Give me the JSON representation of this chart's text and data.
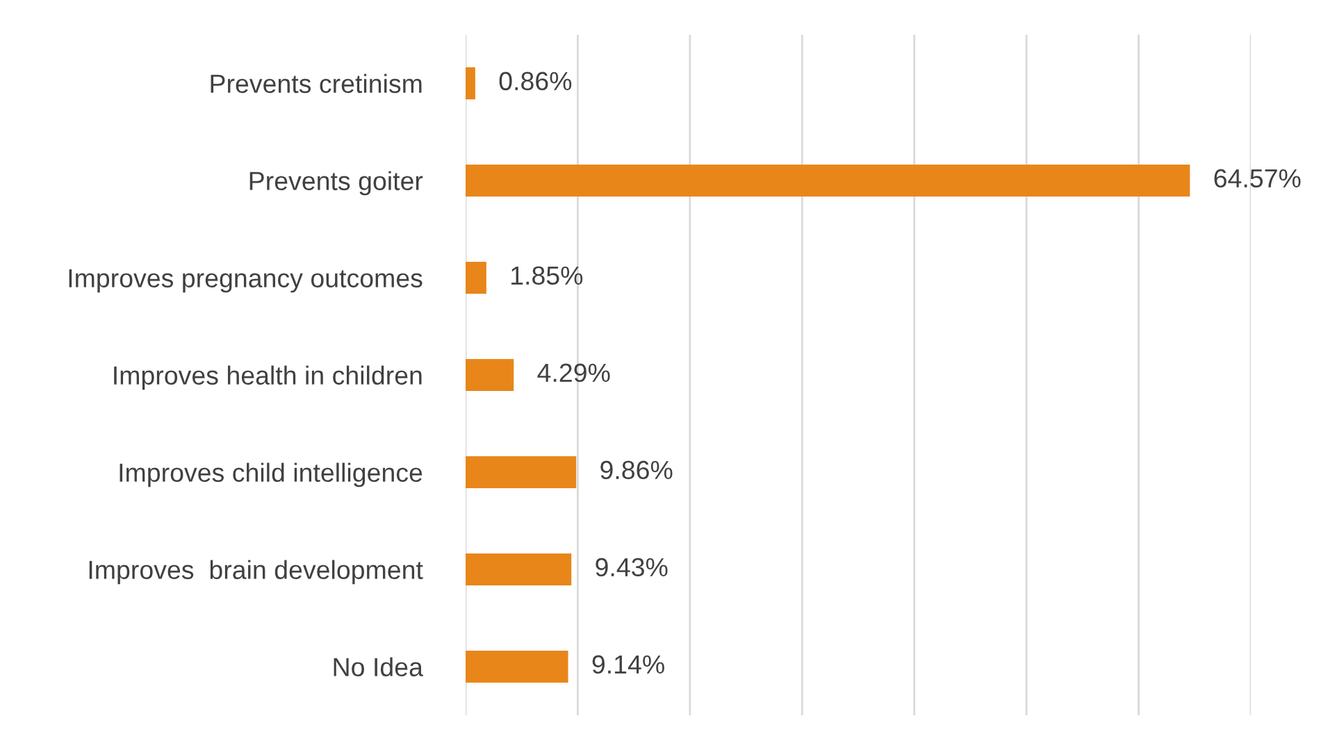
{
  "chart_data": {
    "type": "bar",
    "orientation": "horizontal",
    "categories": [
      "Prevents cretinism",
      "Prevents goiter",
      "Improves pregnancy outcomes",
      "Improves health in children",
      "Improves child intelligence",
      "Improves  brain development",
      "No Idea"
    ],
    "values": [
      0.86,
      64.57,
      1.85,
      4.29,
      9.86,
      9.43,
      9.14
    ],
    "value_labels": [
      "0.86%",
      "64.57%",
      "1.85%",
      "4.29%",
      "9.86%",
      "9.43%",
      "9.14%"
    ],
    "color": "#e8861a",
    "xlim": [
      0,
      70
    ],
    "xticks": [
      {
        "value": 0,
        "label": null
      },
      {
        "value": 10,
        "label": null
      },
      {
        "value": 20,
        "label": null
      },
      {
        "value": 30,
        "label": null
      },
      {
        "value": 40,
        "label": null
      },
      {
        "value": 50,
        "label": null
      },
      {
        "value": 60,
        "label": null
      },
      {
        "value": 70,
        "label": null
      }
    ],
    "grid": "x",
    "legend": false
  }
}
